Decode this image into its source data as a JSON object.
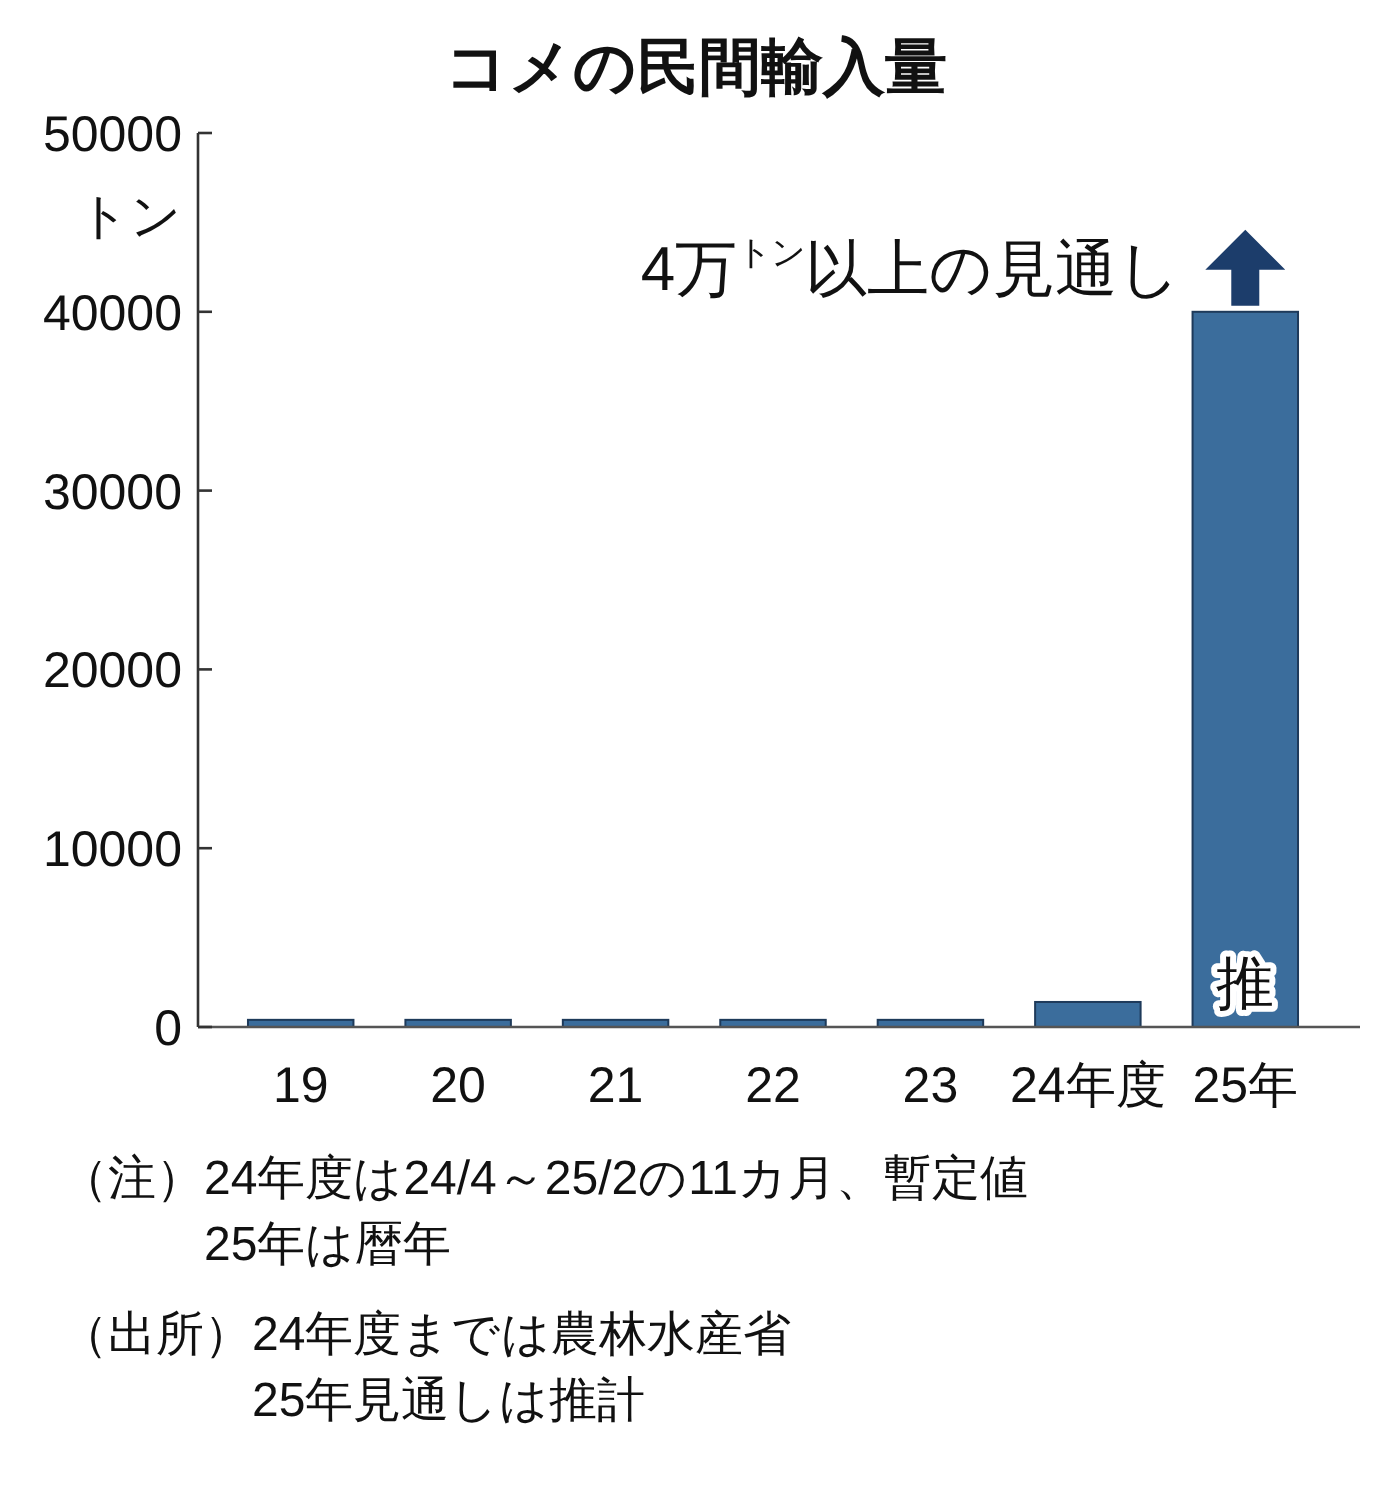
{
  "chart_data": {
    "type": "bar",
    "title": "コメの民間輸入量",
    "ylabel": "トン",
    "categories": [
      "19",
      "20",
      "21",
      "22",
      "23",
      "24年度",
      "25年"
    ],
    "values": [
      400,
      400,
      400,
      400,
      400,
      1400,
      40000
    ],
    "value_labels": [
      null,
      null,
      null,
      null,
      null,
      null,
      "推"
    ],
    "color": "#3b6d9c",
    "ylim": [
      0,
      50000
    ],
    "yticks": [
      0,
      10000,
      20000,
      30000,
      40000,
      50000
    ],
    "annotations": [
      {
        "text": "4万$^{トン}$以上の見通し",
        "x": "25年",
        "y": 40000
      },
      "（注）24年度は24/4～25/2の11カ月、暫定値\n25年は暦年",
      "（出所）24年度までは農林水産省\n25年見通しは推計"
    ]
  }
}
